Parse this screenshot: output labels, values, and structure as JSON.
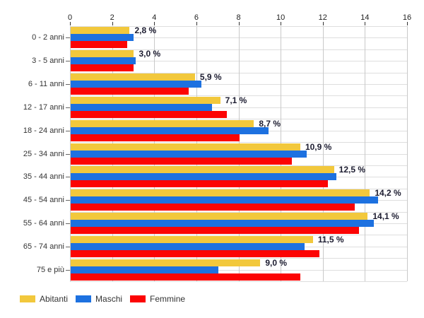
{
  "chart_data": {
    "type": "bar",
    "orientation": "horizontal",
    "title": "",
    "xlabel": "",
    "ylabel": "",
    "xlim": [
      0,
      16
    ],
    "x_ticks": [
      0,
      2,
      4,
      6,
      8,
      10,
      12,
      14,
      16
    ],
    "grid": true,
    "legend_position": "bottom-left",
    "categories": [
      "0 - 2 anni",
      "3 - 5 anni",
      "6 - 11 anni",
      "12 - 17 anni",
      "18 - 24 anni",
      "25 - 34 anni",
      "35 - 44 anni",
      "45 - 54 anni",
      "55 - 64 anni",
      "65 - 74 anni",
      "75 e più"
    ],
    "series": [
      {
        "name": "Abitanti",
        "color": "#F2C83C",
        "values": [
          2.8,
          3.0,
          5.9,
          7.1,
          8.7,
          10.9,
          12.5,
          14.2,
          14.1,
          11.5,
          9.0
        ]
      },
      {
        "name": "Maschi",
        "color": "#1D71E0",
        "values": [
          3.0,
          3.1,
          6.2,
          6.7,
          9.4,
          11.2,
          12.6,
          14.6,
          14.4,
          11.1,
          7.0
        ]
      },
      {
        "name": "Femmine",
        "color": "#FC0404",
        "values": [
          2.7,
          3.0,
          5.6,
          7.4,
          8.0,
          10.5,
          12.2,
          13.5,
          13.7,
          11.8,
          10.9
        ]
      }
    ],
    "data_labels": [
      "2,8 %",
      "3,0 %",
      "5,9 %",
      "7,1 %",
      "8,7 %",
      "10,9 %",
      "12,5 %",
      "14,2 %",
      "14,1 %",
      "11,5 %",
      "9,0 %"
    ],
    "data_label_series": "Abitanti"
  }
}
